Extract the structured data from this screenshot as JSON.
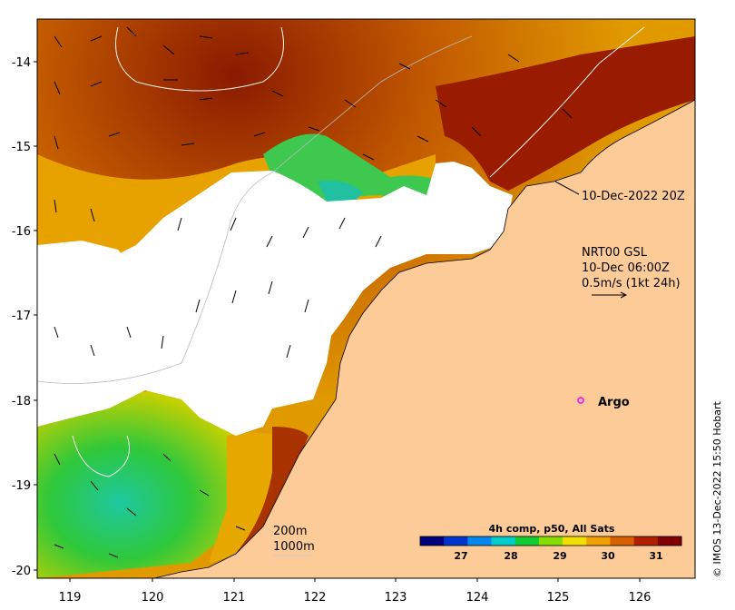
{
  "map": {
    "x_ticks": [
      "119",
      "120",
      "121",
      "122",
      "123",
      "124",
      "125",
      "126"
    ],
    "y_ticks": [
      "-14",
      "-15",
      "-16",
      "-17",
      "-18",
      "-19",
      "-20"
    ],
    "timestamp_label": "10-Dec-2022 20Z",
    "current_model": {
      "line1": "NRT00 GSL",
      "line2": "10-Dec 06:00Z",
      "line3": "0.5m/s (1kt 24h)"
    },
    "argo_label": "Argo",
    "isobaths": {
      "line1": "200m",
      "line2": "1000m"
    },
    "colorbar": {
      "title": "4h comp, p50, All Sats",
      "ticks": [
        "27",
        "28",
        "29",
        "30",
        "31"
      ],
      "colors": [
        "#00007f",
        "#0033cc",
        "#0088ee",
        "#00cccc",
        "#11cc33",
        "#88dd00",
        "#f0e000",
        "#f0a000",
        "#d86000",
        "#b02000",
        "#7f0000"
      ]
    },
    "credit": "© IMOS 13-Dec-2022 15:50 Hobart",
    "colors": {
      "land": "#fdcb98",
      "cloud": "#ffffff",
      "argo": "#ff00ff"
    }
  }
}
